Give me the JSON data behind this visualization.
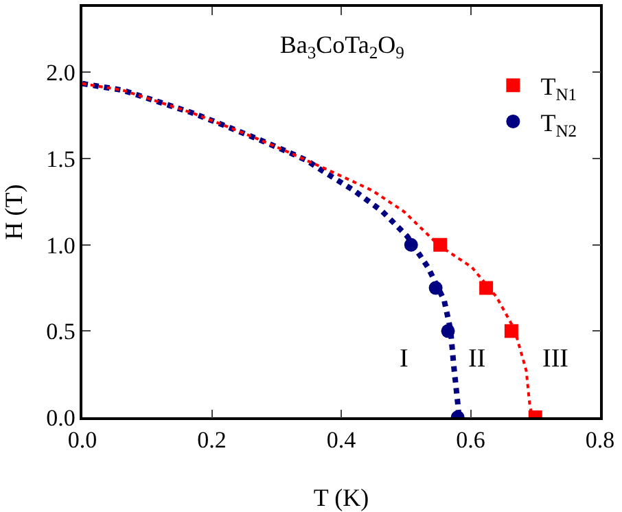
{
  "chart_data": {
    "type": "scatter",
    "title": "Ba$_{3}$CoTa$_{2}$O$_{9}$",
    "xlabel": "T (K)",
    "ylabel": "H (T)",
    "xlim": [
      0,
      0.8
    ],
    "ylim": [
      0,
      2.38
    ],
    "xticks": [
      {
        "value": 0,
        "label": "0.0"
      },
      0.2,
      0.4,
      0.6,
      0.8
    ],
    "yticks": [
      {
        "value": 0,
        "label": "0.0"
      },
      0.5,
      {
        "value": 1,
        "label": "1.0"
      },
      1.5,
      {
        "value": 2,
        "label": "2.0"
      }
    ],
    "series": [
      {
        "name": "T$_{N1}$",
        "color": "#ff0000",
        "marker": "square",
        "x": [
          0.553,
          0.624,
          0.663,
          0.7
        ],
        "values": [
          1.0,
          0.75,
          0.5,
          0
        ]
      },
      {
        "name": "T$_{N2}$",
        "color": "#000080",
        "marker": "circle",
        "x": [
          0.508,
          0.546,
          0.565,
          0.58
        ],
        "values": [
          1.0,
          0.75,
          0.5,
          0
        ]
      },
      {
        "type": "line",
        "color": "#000080",
        "line_style": "dotted",
        "x": [
          0,
          0.062,
          0.113,
          0.17,
          0.219,
          0.271,
          0.322,
          0.348,
          0.371,
          0.419,
          0.463,
          0.502,
          0.534,
          0.559,
          0.569,
          0.574,
          0.58,
          0.582
        ],
        "values": [
          1.935,
          1.897,
          1.835,
          1.765,
          1.693,
          1.614,
          1.532,
          1.487,
          1.429,
          1.317,
          1.196,
          1.05,
          0.87,
          0.68,
          0.508,
          0.296,
          0.085,
          0
        ]
      },
      {
        "type": "line",
        "color": "#ff0000",
        "line_style": "dotted",
        "x": [
          0,
          0.062,
          0.113,
          0.17,
          0.219,
          0.271,
          0.322,
          0.348,
          0.375,
          0.4,
          0.448,
          0.497,
          0.551,
          0.602,
          0.64,
          0.668,
          0.686,
          0.691,
          0.695
        ],
        "values": [
          1.935,
          1.897,
          1.835,
          1.765,
          1.693,
          1.614,
          1.532,
          1.487,
          1.442,
          1.399,
          1.315,
          1.193,
          0.997,
          0.87,
          0.698,
          0.508,
          0.27,
          0.085,
          0
        ]
      }
    ],
    "annotations": [
      "I",
      "II",
      "III"
    ],
    "legend": "top right"
  }
}
